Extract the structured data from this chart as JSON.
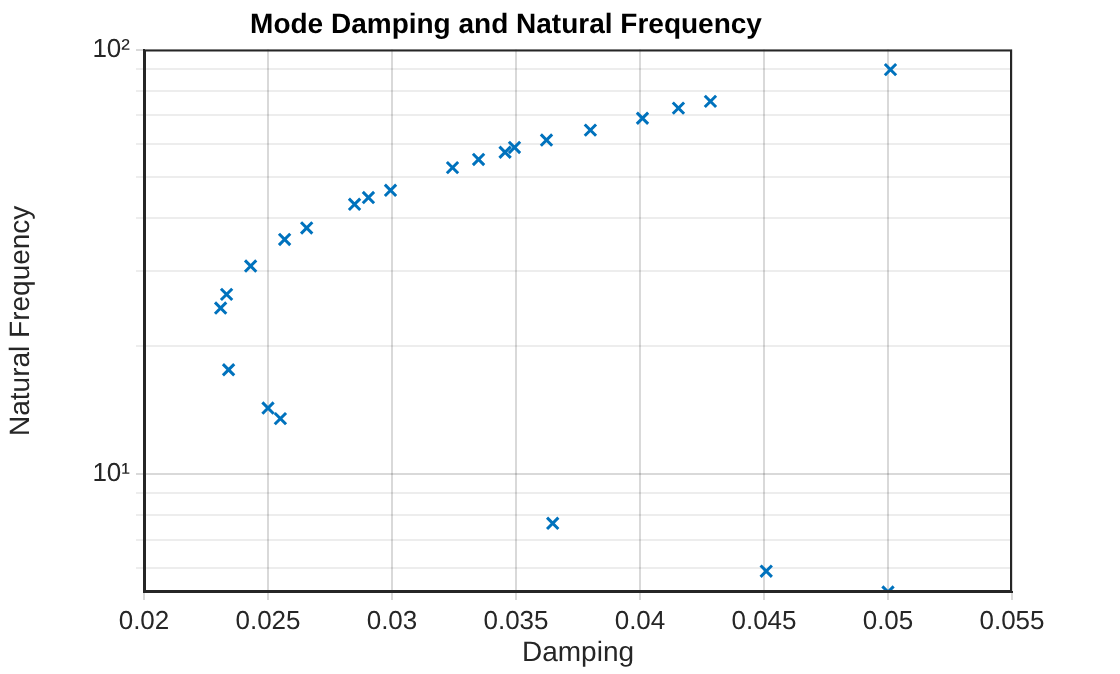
{
  "chart_data": {
    "type": "scatter",
    "title": "Mode Damping and Natural Frequency",
    "xlabel": "Damping",
    "ylabel": "Natural Frequency",
    "x": [
      0.02309,
      0.02333,
      0.02341,
      0.0243,
      0.025,
      0.0255,
      0.02567,
      0.02656,
      0.02849,
      0.02905,
      0.02994,
      0.03244,
      0.03349,
      0.03456,
      0.03494,
      0.03623,
      0.038,
      0.0401,
      0.04155,
      0.04284,
      0.0501,
      0.03648,
      0.04509,
      0.05
    ],
    "series": [
      {
        "color": "#0072bd",
        "values": [
          24.6,
          26.5,
          17.6,
          30.9,
          14.3,
          13.5,
          35.7,
          38.0,
          43.2,
          44.8,
          46.6,
          52.7,
          55.1,
          57.3,
          58.8,
          61.2,
          64.6,
          68.9,
          72.8,
          75.5,
          89.7,
          7.65,
          5.9,
          5.27
        ]
      }
    ],
    "xlim": [
      0.02,
      0.055
    ],
    "xticks": [
      0.02,
      0.025,
      0.03,
      0.035,
      0.04,
      0.045,
      0.05,
      0.055
    ],
    "ylim": [
      5.27,
      100
    ],
    "log": "y",
    "yticks": [
      {
        "value": 6,
        "label": null
      },
      {
        "value": 7,
        "label": null
      },
      {
        "value": 8,
        "label": null
      },
      {
        "value": 9,
        "label": null
      },
      {
        "value": 10,
        "label": "10¹"
      },
      {
        "value": 20,
        "label": null
      },
      {
        "value": 30,
        "label": null
      },
      {
        "value": 40,
        "label": null
      },
      {
        "value": 50,
        "label": null
      },
      {
        "value": 60,
        "label": null
      },
      {
        "value": 70,
        "label": null
      },
      {
        "value": 80,
        "label": null
      },
      {
        "value": 90,
        "label": null
      },
      {
        "value": 100,
        "label": "10²"
      }
    ],
    "grid": true,
    "marker": "cross",
    "legend": false
  }
}
